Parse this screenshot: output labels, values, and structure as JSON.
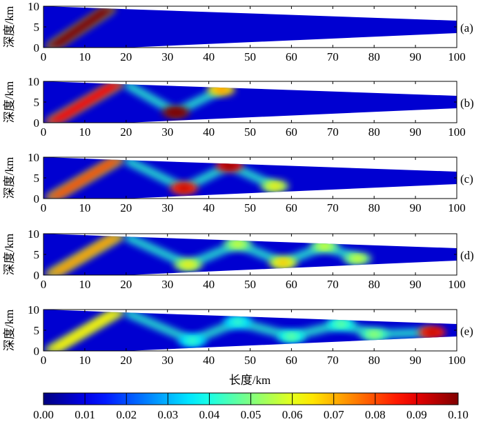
{
  "chart_data": {
    "type": "heatmap",
    "xlabel": "长度/km",
    "ylabel": "深度/km",
    "xlim": [
      0,
      100
    ],
    "ylim": [
      0,
      10
    ],
    "x_ticks": [
      0,
      10,
      20,
      30,
      40,
      50,
      60,
      70,
      80,
      90,
      100
    ],
    "y_ticks": [
      0,
      5,
      10
    ],
    "x_tick_labels": [
      "0",
      "10",
      "20",
      "30",
      "40",
      "50",
      "60",
      "70",
      "80",
      "90",
      "100"
    ],
    "y_tick_labels": [
      "0",
      "5",
      "10"
    ],
    "domain_top_km": [
      [
        0,
        10
      ],
      [
        20,
        9.3
      ],
      [
        100,
        6.5
      ]
    ],
    "domain_bottom_km": [
      [
        0,
        0
      ],
      [
        20,
        0
      ],
      [
        100,
        3.5
      ]
    ],
    "colorbar": {
      "min": 0.0,
      "max": 0.1,
      "ticks": [
        0.0,
        0.01,
        0.02,
        0.03,
        0.04,
        0.05,
        0.06,
        0.07,
        0.08,
        0.09,
        0.1
      ],
      "tick_labels": [
        "0.00",
        "0.01",
        "0.02",
        "0.03",
        "0.04",
        "0.05",
        "0.06",
        "0.07",
        "0.08",
        "0.09",
        "0.10"
      ],
      "colormap": "jet"
    },
    "panels": [
      {
        "label": "(a)",
        "beam_front_km": 18,
        "hotspots": []
      },
      {
        "label": "(b)",
        "beam_front_km": 20,
        "hotspots": [
          {
            "x": 32,
            "y": 2.5,
            "value": 0.1
          },
          {
            "x": 43,
            "y": 8.0,
            "value": 0.065
          }
        ]
      },
      {
        "label": "(c)",
        "beam_front_km": 20,
        "hotspots": [
          {
            "x": 34,
            "y": 2.5,
            "value": 0.085
          },
          {
            "x": 45,
            "y": 8.0,
            "value": 0.09
          },
          {
            "x": 56,
            "y": 3.0,
            "value": 0.055
          }
        ]
      },
      {
        "label": "(d)",
        "beam_front_km": 20,
        "hotspots": [
          {
            "x": 35,
            "y": 2.5,
            "value": 0.055
          },
          {
            "x": 47,
            "y": 7.5,
            "value": 0.05
          },
          {
            "x": 58,
            "y": 3.0,
            "value": 0.06
          },
          {
            "x": 68,
            "y": 7.0,
            "value": 0.05
          },
          {
            "x": 76,
            "y": 4.0,
            "value": 0.05
          }
        ]
      },
      {
        "label": "(e)",
        "beam_front_km": 20,
        "hotspots": [
          {
            "x": 36,
            "y": 2.5,
            "value": 0.035
          },
          {
            "x": 47,
            "y": 7.0,
            "value": 0.035
          },
          {
            "x": 60,
            "y": 3.5,
            "value": 0.04
          },
          {
            "x": 72,
            "y": 6.5,
            "value": 0.04
          },
          {
            "x": 80,
            "y": 4.0,
            "value": 0.045
          },
          {
            "x": 94,
            "y": 4.5,
            "value": 0.085
          }
        ]
      }
    ]
  }
}
